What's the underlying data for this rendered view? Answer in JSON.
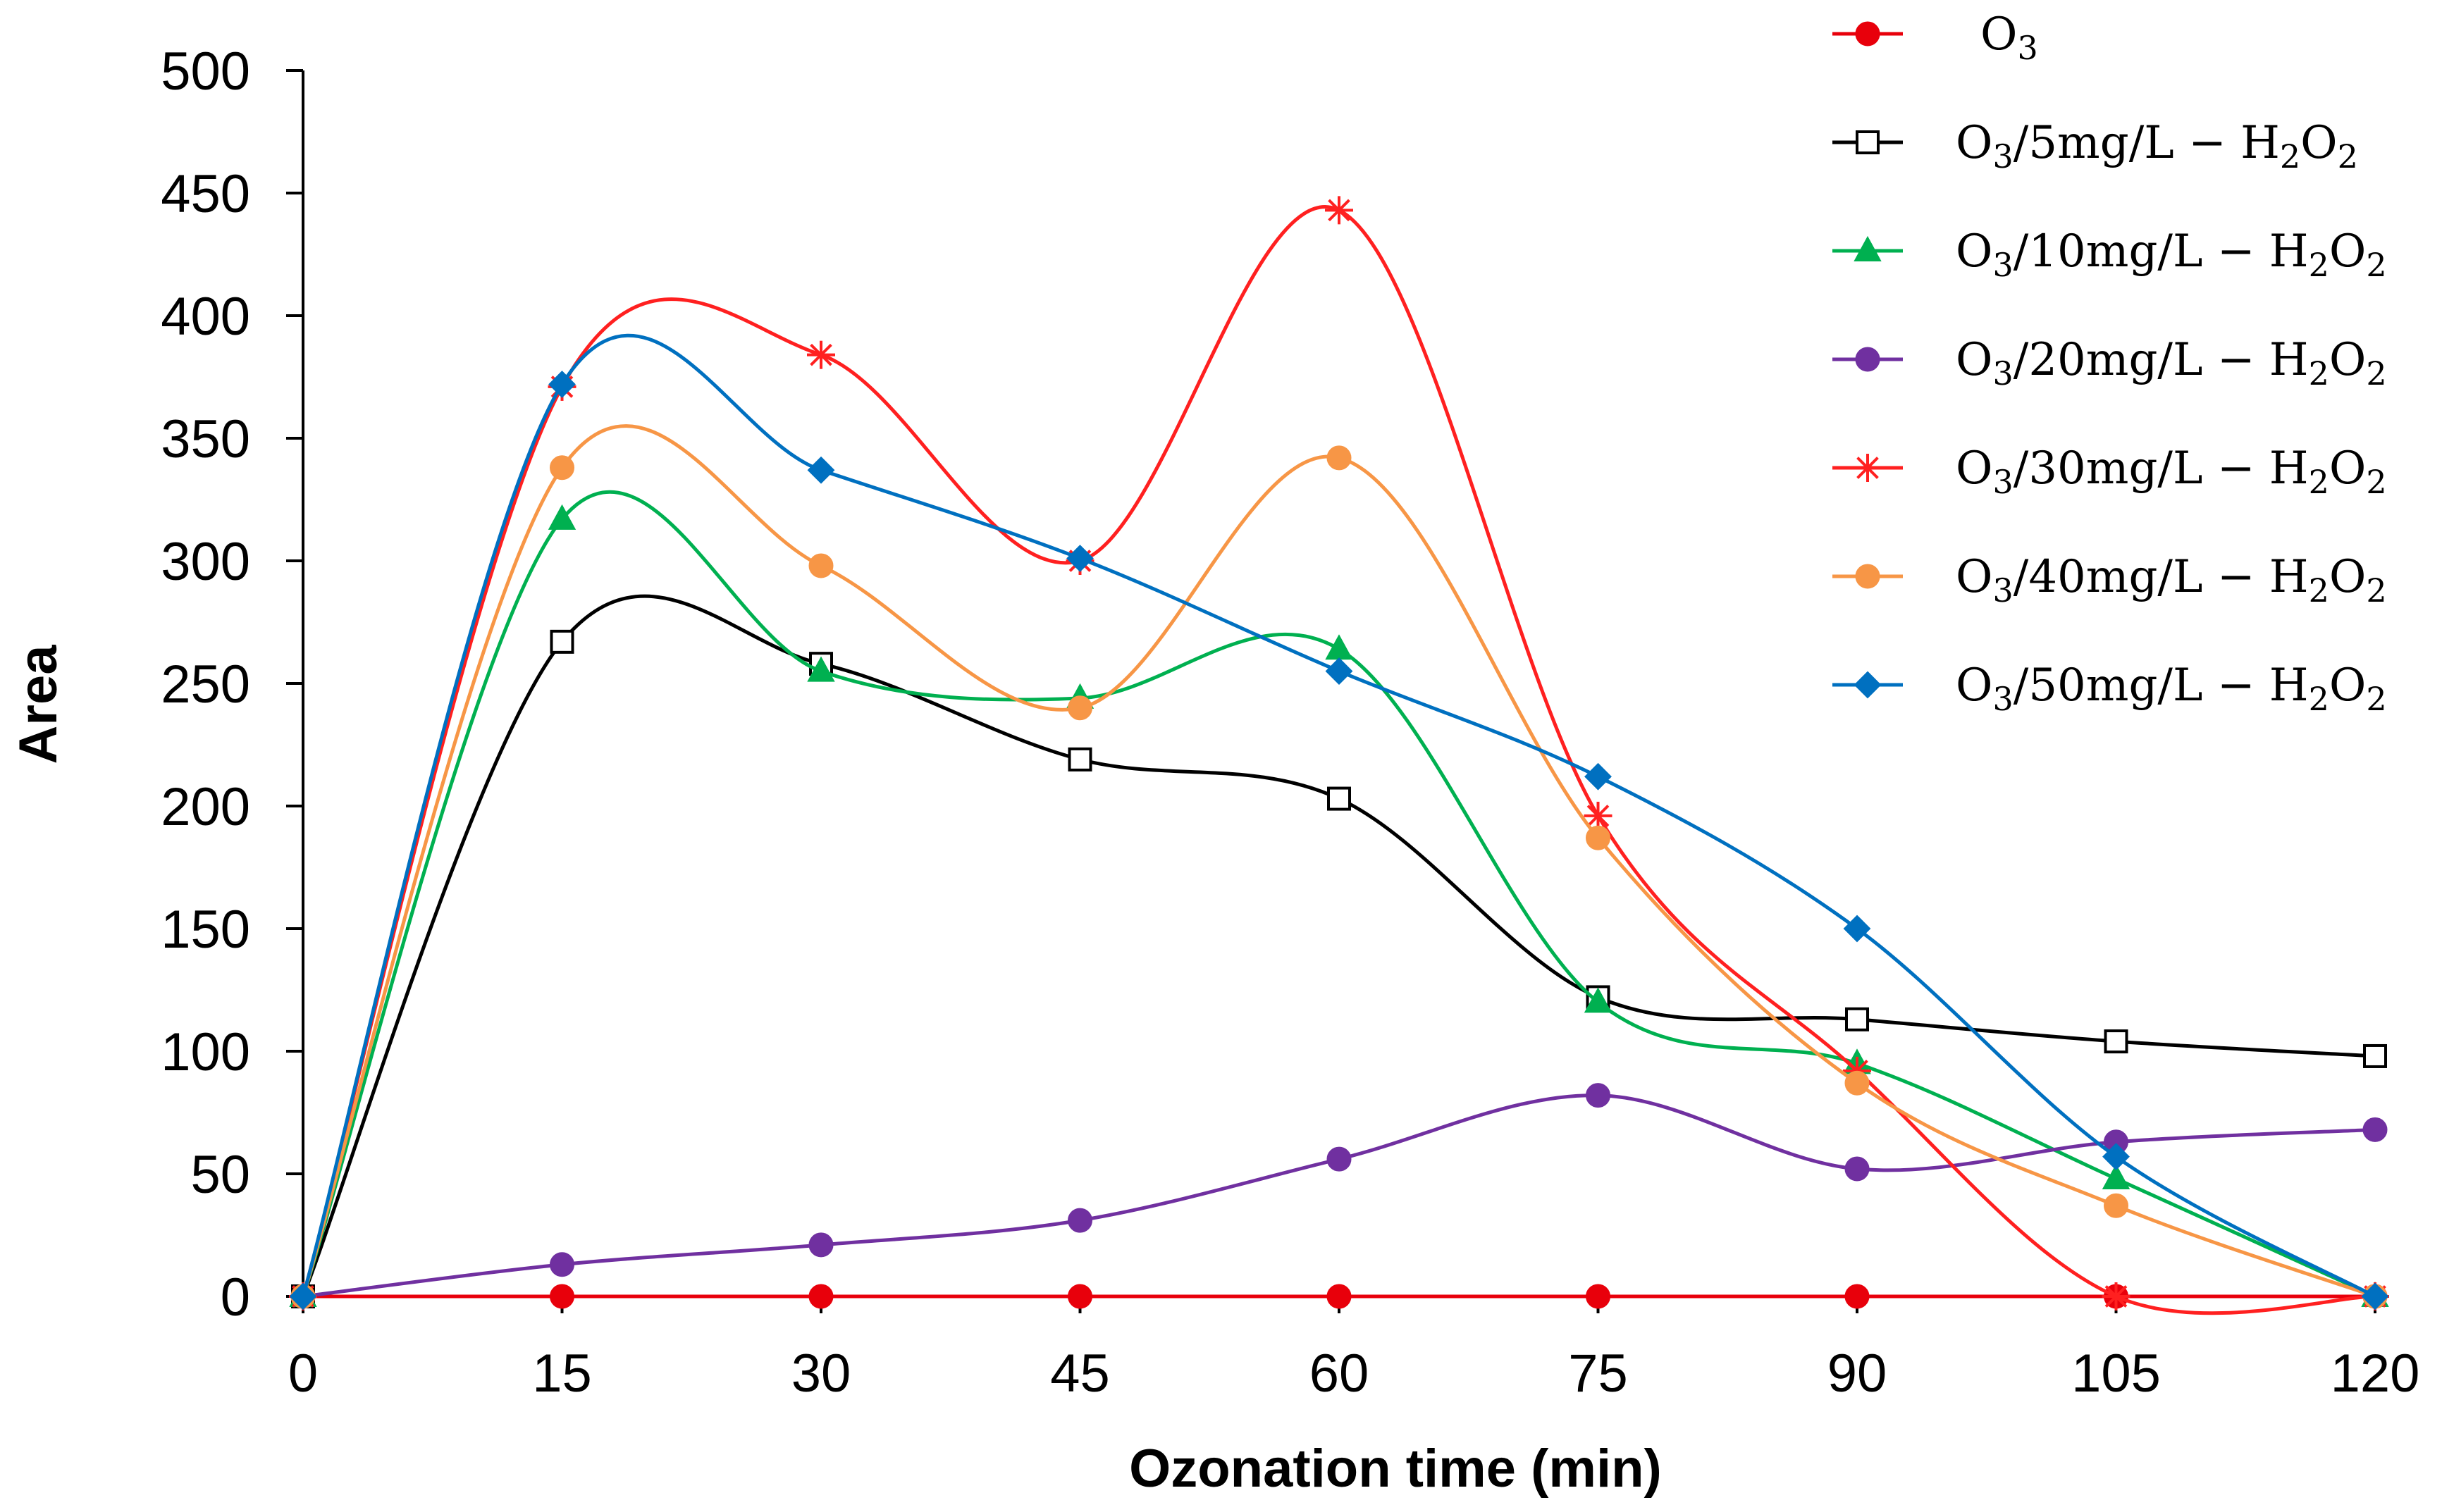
{
  "chart_data": {
    "type": "line",
    "title": "",
    "xlabel": "Ozonation time (min)",
    "ylabel": "Area",
    "x": [
      0,
      15,
      30,
      45,
      60,
      75,
      90,
      105,
      120
    ],
    "xticks": [
      "0",
      "15",
      "30",
      "45",
      "60",
      "75",
      "90",
      "105",
      "120"
    ],
    "yticks": [
      "0",
      "50",
      "100",
      "150",
      "200",
      "250",
      "300",
      "350",
      "400",
      "450",
      "500"
    ],
    "xlim": [
      0,
      120
    ],
    "ylim": [
      0,
      500
    ],
    "grid": false,
    "legend_position": "top-right",
    "series": [
      {
        "name": "O3",
        "label_main": "O",
        "label_parts": [
          [
            "O",
            "normal"
          ],
          [
            "3",
            "sub"
          ]
        ],
        "color": "#e8000b",
        "marker": "circle",
        "fill": true,
        "values": [
          0,
          0,
          0,
          0,
          0,
          0,
          0,
          0,
          0
        ]
      },
      {
        "name": "O3/5mg/L - H2O2",
        "label_parts": [
          [
            "O",
            "normal"
          ],
          [
            "3",
            "sub"
          ],
          [
            "/5mg/L − H",
            "normal"
          ],
          [
            "2",
            "sub"
          ],
          [
            "O",
            "normal"
          ],
          [
            "2",
            "sub"
          ]
        ],
        "color": "#000000",
        "marker": "square",
        "fill": false,
        "values": [
          0,
          267,
          258,
          219,
          203,
          122,
          113,
          104,
          98
        ]
      },
      {
        "name": "O3/10mg/L - H2O2",
        "label_parts": [
          [
            "O",
            "normal"
          ],
          [
            "3",
            "sub"
          ],
          [
            "/10mg/L − H",
            "normal"
          ],
          [
            "2",
            "sub"
          ],
          [
            "O",
            "normal"
          ],
          [
            "2",
            "sub"
          ]
        ],
        "color": "#00b050",
        "marker": "triangle",
        "fill": true,
        "values": [
          0,
          317,
          255,
          244,
          264,
          120,
          95,
          48,
          0
        ]
      },
      {
        "name": "O3/20mg/L - H2O2",
        "label_parts": [
          [
            "O",
            "normal"
          ],
          [
            "3",
            "sub"
          ],
          [
            "/20mg/L − H",
            "normal"
          ],
          [
            "2",
            "sub"
          ],
          [
            "O",
            "normal"
          ],
          [
            "2",
            "sub"
          ]
        ],
        "color": "#7030a0",
        "marker": "circle",
        "fill": true,
        "values": [
          0,
          13,
          21,
          31,
          56,
          82,
          52,
          63,
          68
        ]
      },
      {
        "name": "O3/30mg/L - H2O2",
        "label_parts": [
          [
            "O",
            "normal"
          ],
          [
            "3",
            "sub"
          ],
          [
            "/30mg/L − H",
            "normal"
          ],
          [
            "2",
            "sub"
          ],
          [
            "O",
            "normal"
          ],
          [
            "2",
            "sub"
          ]
        ],
        "color": "#ff2020",
        "marker": "star",
        "fill": false,
        "values": [
          0,
          371,
          384,
          300,
          443,
          196,
          92,
          0,
          0
        ]
      },
      {
        "name": "O3/40mg/L - H2O2",
        "label_parts": [
          [
            "O",
            "normal"
          ],
          [
            "3",
            "sub"
          ],
          [
            "/40mg/L − H",
            "normal"
          ],
          [
            "2",
            "sub"
          ],
          [
            "O",
            "normal"
          ],
          [
            "2",
            "sub"
          ]
        ],
        "color": "#f79646",
        "marker": "circle",
        "fill": true,
        "values": [
          0,
          338,
          298,
          240,
          342,
          187,
          87,
          37,
          0
        ]
      },
      {
        "name": "O3/50mg/L - H2O2",
        "label_parts": [
          [
            "O",
            "normal"
          ],
          [
            "3",
            "sub"
          ],
          [
            "/50mg/L − H",
            "normal"
          ],
          [
            "2",
            "sub"
          ],
          [
            "O",
            "normal"
          ],
          [
            "2",
            "sub"
          ]
        ],
        "color": "#0070c0",
        "marker": "diamond",
        "fill": true,
        "values": [
          0,
          372,
          337,
          301,
          255,
          212,
          150,
          57,
          0
        ]
      }
    ]
  }
}
